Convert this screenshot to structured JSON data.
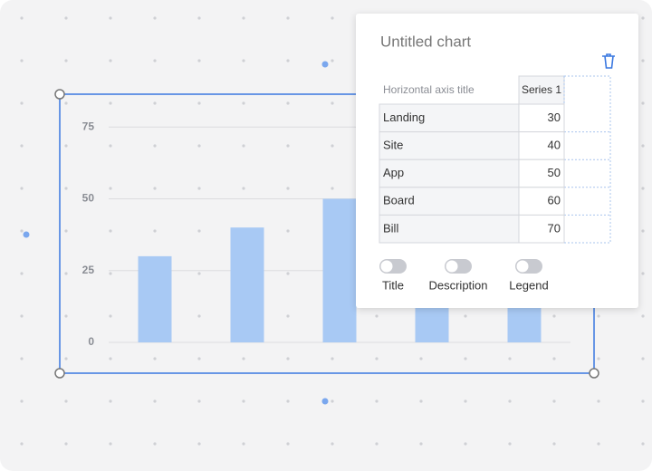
{
  "chart_data": {
    "type": "bar",
    "categories": [
      "Landing",
      "Site",
      "App",
      "Board",
      "Bill"
    ],
    "series": [
      {
        "name": "Series 1",
        "color": "#a8c9f4",
        "values": [
          30,
          40,
          50,
          60,
          70
        ]
      }
    ],
    "ylim": [
      0,
      85
    ],
    "yticks": [
      0,
      25,
      50,
      75
    ],
    "grid": true
  },
  "panel": {
    "title": "Untitled chart",
    "header": "Horizontal axis title",
    "toggles": [
      "Title",
      "Description",
      "Legend"
    ]
  }
}
